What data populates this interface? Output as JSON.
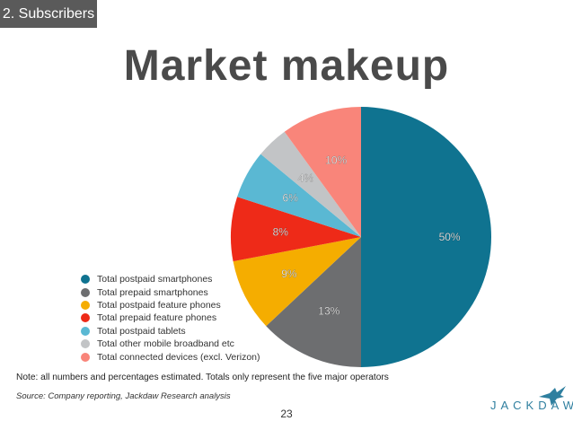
{
  "section_tag": "2. Subscribers",
  "title": "Market makeup",
  "note": "Note: all numbers and percentages estimated. Totals only represent the five major operators",
  "source": "Source: Company reporting, Jackdaw Research analysis",
  "page_number": "23",
  "brand": "JACKDAW",
  "chart_data": {
    "type": "pie",
    "legend_position": "bottom-left",
    "slices": [
      {
        "label": "Total postpaid smartphones",
        "value": 50,
        "display": "50%",
        "color": "#0f7390"
      },
      {
        "label": "Total prepaid smartphones",
        "value": 13,
        "display": "13%",
        "color": "#6d6e70"
      },
      {
        "label": "Total postpaid feature phones",
        "value": 9,
        "display": "9%",
        "color": "#f5ad00"
      },
      {
        "label": "Total prepaid feature phones",
        "value": 8,
        "display": "8%",
        "color": "#ee2a18"
      },
      {
        "label": "Total postpaid tablets",
        "value": 6,
        "display": "6%",
        "color": "#5ab8d3"
      },
      {
        "label": "Total other mobile broadband etc",
        "value": 4,
        "display": "4%",
        "color": "#c2c4c6"
      },
      {
        "label": "Total connected devices (excl. Verizon)",
        "value": 10,
        "display": "10%",
        "color": "#f9857a"
      }
    ]
  }
}
